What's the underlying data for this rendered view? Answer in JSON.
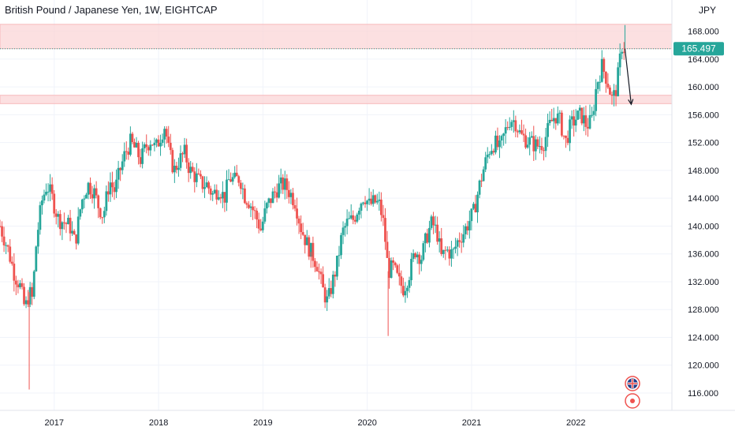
{
  "header": {
    "title": "British Pound / Japanese Yen, 1W, EIGHTCAP",
    "currency": "JPY"
  },
  "price_label": "165.497",
  "colors": {
    "up": "#26a69a",
    "down": "#ef5350",
    "zone": "#fbd6d7",
    "zone_line": "#f7b9bb",
    "price_tag": "#26a69a",
    "grid": "#f0f3fa",
    "axis_text": "#131722",
    "arrow": "#131722"
  },
  "chart_data": {
    "type": "candlestick",
    "title": "British Pound / Japanese Yen, 1W, EIGHTCAP",
    "ylabel": "JPY",
    "ylim": [
      113.5,
      172.5
    ],
    "y_ticks": [
      "116.000",
      "120.000",
      "124.000",
      "128.000",
      "132.000",
      "136.000",
      "140.000",
      "144.000",
      "148.000",
      "152.000",
      "156.000",
      "160.000",
      "164.000",
      "168.000"
    ],
    "y_tick_values": [
      116,
      120,
      124,
      128,
      132,
      136,
      140,
      144,
      148,
      152,
      156,
      160,
      164,
      168
    ],
    "x_ticks": [
      "2017",
      "2018",
      "2019",
      "2020",
      "2021",
      "2022"
    ],
    "x_tick_dates": [
      2017.0,
      2018.0,
      2019.0,
      2020.0,
      2021.0,
      2022.0
    ],
    "x_range": [
      2016.48,
      2022.92
    ],
    "last_price": 165.497,
    "resistance_zones": [
      {
        "from": 165.5,
        "to": 169.0
      },
      {
        "from": 157.6,
        "to": 158.8
      }
    ],
    "price_path": [
      [
        2016.48,
        140.0
      ],
      [
        2016.56,
        136.5
      ],
      [
        2016.62,
        133.0
      ],
      [
        2016.67,
        131.5
      ],
      [
        2016.72,
        128.0
      ],
      [
        2016.76,
        130.5
      ],
      [
        2016.79,
        129.5
      ],
      [
        2016.83,
        138.0
      ],
      [
        2016.88,
        143.5
      ],
      [
        2016.93,
        146.0
      ],
      [
        2016.98,
        144.0
      ],
      [
        2017.04,
        141.0
      ],
      [
        2017.1,
        140.5
      ],
      [
        2017.15,
        140.0
      ],
      [
        2017.2,
        137.5
      ],
      [
        2017.26,
        143.5
      ],
      [
        2017.32,
        146.0
      ],
      [
        2017.38,
        145.0
      ],
      [
        2017.42,
        143.0
      ],
      [
        2017.47,
        141.5
      ],
      [
        2017.53,
        146.5
      ],
      [
        2017.58,
        145.0
      ],
      [
        2017.63,
        148.0
      ],
      [
        2017.68,
        150.5
      ],
      [
        2017.73,
        152.0
      ],
      [
        2017.78,
        151.0
      ],
      [
        2017.83,
        149.5
      ],
      [
        2017.88,
        151.5
      ],
      [
        2017.93,
        152.5
      ],
      [
        2017.97,
        151.0
      ],
      [
        2018.02,
        153.0
      ],
      [
        2018.06,
        154.5
      ],
      [
        2018.1,
        150.5
      ],
      [
        2018.15,
        148.0
      ],
      [
        2018.2,
        149.5
      ],
      [
        2018.25,
        150.5
      ],
      [
        2018.3,
        148.0
      ],
      [
        2018.36,
        147.0
      ],
      [
        2018.41,
        146.0
      ],
      [
        2018.46,
        146.0
      ],
      [
        2018.52,
        144.5
      ],
      [
        2018.58,
        145.5
      ],
      [
        2018.63,
        144.0
      ],
      [
        2018.68,
        147.0
      ],
      [
        2018.73,
        146.5
      ],
      [
        2018.78,
        147.0
      ],
      [
        2018.82,
        144.5
      ],
      [
        2018.87,
        143.5
      ],
      [
        2018.93,
        141.5
      ],
      [
        2018.98,
        139.5
      ],
      [
        2019.03,
        142.5
      ],
      [
        2019.08,
        144.0
      ],
      [
        2019.14,
        145.5
      ],
      [
        2019.2,
        146.0
      ],
      [
        2019.25,
        145.0
      ],
      [
        2019.31,
        143.5
      ],
      [
        2019.36,
        140.0
      ],
      [
        2019.42,
        137.5
      ],
      [
        2019.47,
        136.0
      ],
      [
        2019.52,
        134.5
      ],
      [
        2019.57,
        131.0
      ],
      [
        2019.62,
        129.0
      ],
      [
        2019.66,
        131.5
      ],
      [
        2019.71,
        134.5
      ],
      [
        2019.76,
        139.0
      ],
      [
        2019.81,
        140.5
      ],
      [
        2019.87,
        141.0
      ],
      [
        2019.92,
        143.0
      ],
      [
        2019.97,
        144.5
      ],
      [
        2020.02,
        143.0
      ],
      [
        2020.07,
        143.5
      ],
      [
        2020.12,
        143.0
      ],
      [
        2020.16,
        140.0
      ],
      [
        2020.2,
        133.5
      ],
      [
        2020.25,
        134.0
      ],
      [
        2020.3,
        132.0
      ],
      [
        2020.35,
        131.0
      ],
      [
        2020.41,
        133.5
      ],
      [
        2020.46,
        136.5
      ],
      [
        2020.52,
        135.5
      ],
      [
        2020.57,
        138.5
      ],
      [
        2020.62,
        140.5
      ],
      [
        2020.67,
        139.0
      ],
      [
        2020.71,
        135.5
      ],
      [
        2020.76,
        136.5
      ],
      [
        2020.82,
        136.0
      ],
      [
        2020.87,
        138.0
      ],
      [
        2020.92,
        139.0
      ],
      [
        2020.97,
        140.5
      ],
      [
        2021.02,
        142.0
      ],
      [
        2021.07,
        145.5
      ],
      [
        2021.12,
        148.5
      ],
      [
        2021.17,
        151.0
      ],
      [
        2021.22,
        152.0
      ],
      [
        2021.27,
        151.0
      ],
      [
        2021.32,
        153.5
      ],
      [
        2021.37,
        155.5
      ],
      [
        2021.42,
        155.0
      ],
      [
        2021.47,
        153.0
      ],
      [
        2021.52,
        152.5
      ],
      [
        2021.57,
        152.0
      ],
      [
        2021.63,
        151.5
      ],
      [
        2021.69,
        152.0
      ],
      [
        2021.75,
        154.5
      ],
      [
        2021.8,
        156.0
      ],
      [
        2021.85,
        155.0
      ],
      [
        2021.9,
        152.0
      ],
      [
        2021.95,
        154.5
      ],
      [
        2022.0,
        155.5
      ],
      [
        2022.05,
        156.0
      ],
      [
        2022.1,
        154.5
      ],
      [
        2022.15,
        155.0
      ],
      [
        2022.2,
        160.5
      ],
      [
        2022.25,
        163.0
      ],
      [
        2022.3,
        161.0
      ],
      [
        2022.35,
        158.0
      ],
      [
        2022.39,
        160.0
      ],
      [
        2022.44,
        166.0
      ],
      [
        2022.47,
        165.497
      ]
    ],
    "spikes": [
      [
        2016.76,
        116.5
      ],
      [
        2019.46,
        134.0
      ],
      [
        2020.2,
        124.2
      ],
      [
        2022.47,
        168.9
      ]
    ],
    "annotations": [
      {
        "type": "arrow",
        "from": [
          2022.47,
          165.5
        ],
        "to": [
          2022.53,
          157.5
        ]
      }
    ]
  },
  "flags": {
    "uk_label": "UK",
    "jp_label": "JP"
  }
}
